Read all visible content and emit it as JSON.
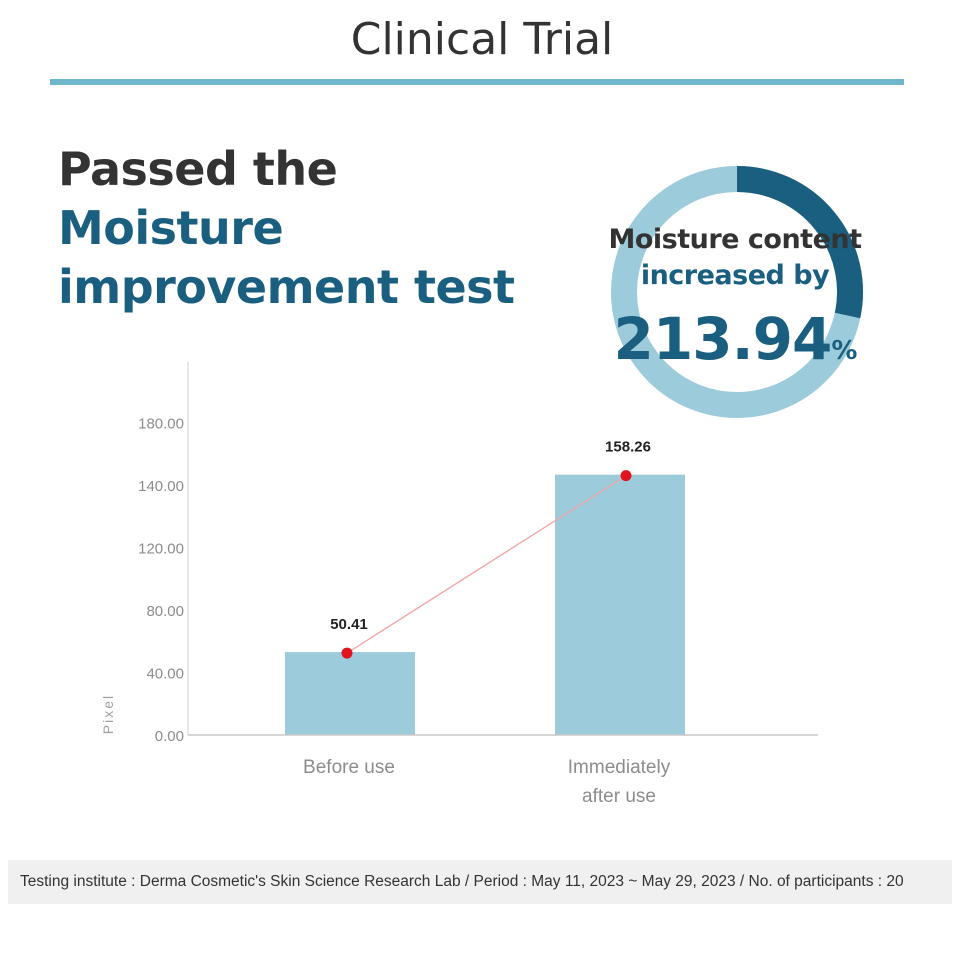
{
  "header": {
    "title": "Clinical Trial"
  },
  "headline": {
    "line1": "Passed the",
    "line2": "Moisture",
    "line3": "improvement test"
  },
  "badge": {
    "line1": "Moisture content",
    "line2": "increased by",
    "value": "213.94",
    "unit": "%"
  },
  "colors": {
    "accent": "#1a5f80",
    "rule": "#6fb6cc",
    "bar": "#9ccbdb",
    "ring_light": "#9ccbdb",
    "ring_dark": "#1a5f80",
    "trend_point": "#e0141e",
    "trend_line": "#f3a5a5",
    "axis_text": "#8c8c8c"
  },
  "chart_data": {
    "type": "bar",
    "categories": [
      "Before use",
      "Immediately after use"
    ],
    "category_lines": [
      [
        "Before use"
      ],
      [
        "Immediately",
        "after use"
      ]
    ],
    "values": [
      50.41,
      158.26
    ],
    "value_labels": [
      "50.41",
      "158.26"
    ],
    "yticks": [
      "0.00",
      "40.00",
      "80.00",
      "120.00",
      "140.00",
      "180.00"
    ],
    "ylabel": "Pixel",
    "overlay_line": true,
    "grid": false
  },
  "footer": {
    "text": "Testing institute : Derma Cosmetic's Skin Science Research Lab / Period : May 11, 2023 ~ May 29, 2023 / No. of participants : 20"
  }
}
